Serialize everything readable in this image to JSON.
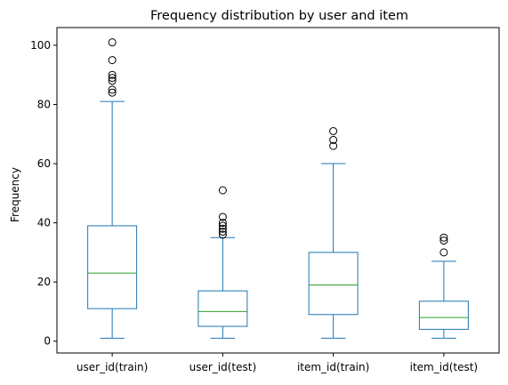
{
  "chart_data": {
    "type": "box",
    "title": "Frequency distribution by user and item",
    "xlabel": "",
    "ylabel": "Frequency",
    "ylim": [
      -4,
      106
    ],
    "yticks": [
      0,
      20,
      40,
      60,
      80,
      100
    ],
    "grid": false,
    "categories": [
      "user_id(train)",
      "user_id(test)",
      "item_id(train)",
      "item_id(test)"
    ],
    "boxes": [
      {
        "label": "user_id(train)",
        "whisker_low": 1,
        "q1": 11,
        "median": 23,
        "q3": 39,
        "whisker_high": 81,
        "outliers": [
          84,
          85,
          88,
          89,
          90,
          95,
          101
        ]
      },
      {
        "label": "user_id(test)",
        "whisker_low": 1,
        "q1": 5,
        "median": 10,
        "q3": 17,
        "whisker_high": 35,
        "outliers": [
          36,
          37,
          38,
          39,
          40,
          42,
          51
        ]
      },
      {
        "label": "item_id(train)",
        "whisker_low": 1,
        "q1": 9,
        "median": 19,
        "q3": 30,
        "whisker_high": 60,
        "outliers": [
          66,
          68,
          71
        ]
      },
      {
        "label": "item_id(test)",
        "whisker_low": 1,
        "q1": 4,
        "median": 8,
        "q3": 13.5,
        "whisker_high": 27,
        "outliers": [
          30,
          34,
          35
        ]
      }
    ],
    "colors": {
      "box": "#1f77b4",
      "median": "#2ca02c",
      "outlier": "#000000",
      "axis": "#000000"
    }
  }
}
